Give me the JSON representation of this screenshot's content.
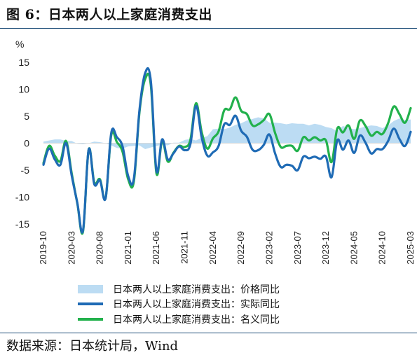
{
  "figure": {
    "title": "图 6：日本两人以上家庭消费支出",
    "source": "数据来源：日本统计局，Wind"
  },
  "chart_data": {
    "type": "line",
    "title": "图 6：日本两人以上家庭消费支出",
    "unit_label": "%",
    "ylim": [
      -15,
      15
    ],
    "yticks": [
      15,
      10,
      5,
      0,
      -5,
      -10,
      -15
    ],
    "x_range": [
      "2019-10",
      "2025-03"
    ],
    "xtick_labels": [
      "2019-10",
      "2020-03",
      "2020-08",
      "2021-01",
      "2021-06",
      "2021-11",
      "2022-04",
      "2022-09",
      "2023-02",
      "2023-07",
      "2023-12",
      "2024-05",
      "2024-10",
      "2025-03"
    ],
    "x": [
      "2019-10",
      "2019-11",
      "2019-12",
      "2020-01",
      "2020-02",
      "2020-03",
      "2020-04",
      "2020-05",
      "2020-06",
      "2020-07",
      "2020-08",
      "2020-09",
      "2020-10",
      "2020-11",
      "2020-12",
      "2021-01",
      "2021-02",
      "2021-03",
      "2021-04",
      "2021-05",
      "2021-06",
      "2021-07",
      "2021-08",
      "2021-09",
      "2021-10",
      "2021-11",
      "2021-12",
      "2022-01",
      "2022-02",
      "2022-03",
      "2022-04",
      "2022-05",
      "2022-06",
      "2022-07",
      "2022-08",
      "2022-09",
      "2022-10",
      "2022-11",
      "2022-12",
      "2023-01",
      "2023-02",
      "2023-03",
      "2023-04",
      "2023-05",
      "2023-06",
      "2023-07",
      "2023-08",
      "2023-09",
      "2023-10",
      "2023-11",
      "2023-12",
      "2024-01",
      "2024-02",
      "2024-03",
      "2024-04",
      "2024-05",
      "2024-06",
      "2024-07",
      "2024-08",
      "2024-09",
      "2024-10",
      "2024-11",
      "2024-12",
      "2025-01",
      "2025-02",
      "2025-03"
    ],
    "series": [
      {
        "name": "日本两人以上家庭消费支出：价格同比",
        "style": "area",
        "color": "#bcdcf3",
        "values": [
          0.3,
          0.5,
          0.7,
          0.7,
          0.4,
          0.4,
          -0.1,
          -0.2,
          0.0,
          0.3,
          0.2,
          0.0,
          -0.4,
          -0.9,
          -1.0,
          -0.6,
          -0.5,
          -0.4,
          -1.1,
          -0.8,
          -0.5,
          -0.3,
          -0.4,
          0.1,
          0.1,
          0.6,
          0.8,
          0.5,
          1.0,
          1.3,
          2.6,
          2.7,
          2.6,
          2.9,
          3.4,
          3.7,
          4.2,
          4.5,
          4.8,
          4.6,
          3.8,
          3.8,
          3.7,
          3.5,
          3.7,
          3.6,
          3.6,
          3.3,
          3.6,
          3.4,
          3.0,
          2.8,
          2.2,
          3.2,
          2.8,
          2.6,
          2.8,
          3.1,
          3.3,
          3.2,
          2.8,
          3.3,
          4.1,
          4.6,
          4.3,
          4.4
        ]
      },
      {
        "name": "日本两人以上家庭消费支出：实际同比",
        "style": "line",
        "color": "#1f6bb5",
        "values": [
          -4.0,
          -1.0,
          -3.0,
          -4.0,
          0.0,
          -6.0,
          -11.1,
          -16.2,
          -1.2,
          -7.6,
          -6.9,
          -10.2,
          1.9,
          1.1,
          -0.6,
          -6.1,
          -6.6,
          6.2,
          13.0,
          11.6,
          -5.1,
          0.7,
          -3.0,
          -1.9,
          -0.6,
          -1.3,
          -0.2,
          6.9,
          1.1,
          -2.3,
          -1.7,
          -0.5,
          3.5,
          3.4,
          5.1,
          2.3,
          1.2,
          -1.2,
          -1.3,
          -0.3,
          1.6,
          -1.9,
          -4.4,
          -4.0,
          -4.2,
          -5.0,
          -2.5,
          -2.8,
          -2.5,
          -2.9,
          -2.5,
          -6.3,
          0.5,
          -1.2,
          0.5,
          -1.8,
          1.4,
          0.1,
          -1.9,
          -1.1,
          -1.1,
          0.4,
          2.7,
          0.8,
          -0.5,
          2.1
        ]
      },
      {
        "name": "日本两人以上家庭消费支出：名义同比",
        "style": "line",
        "color": "#22b14c",
        "values": [
          -3.7,
          -0.5,
          -2.3,
          -3.3,
          0.4,
          -5.6,
          -11.2,
          -16.4,
          -1.2,
          -7.3,
          -6.7,
          -10.2,
          1.5,
          0.2,
          -1.6,
          -6.7,
          -7.1,
          5.8,
          11.9,
          10.8,
          -5.6,
          0.4,
          -3.4,
          -1.8,
          -0.5,
          -0.7,
          0.6,
          7.4,
          2.1,
          -1.0,
          0.9,
          2.2,
          6.1,
          6.3,
          8.5,
          6.0,
          5.4,
          3.3,
          3.5,
          4.3,
          5.4,
          1.9,
          -0.7,
          -0.5,
          -0.5,
          -1.4,
          1.1,
          0.5,
          1.1,
          0.5,
          0.5,
          -3.5,
          2.7,
          2.0,
          3.3,
          0.8,
          4.2,
          3.2,
          1.4,
          2.1,
          1.7,
          3.7,
          6.8,
          5.4,
          3.8,
          6.5
        ]
      }
    ],
    "legend_position": "bottom"
  }
}
